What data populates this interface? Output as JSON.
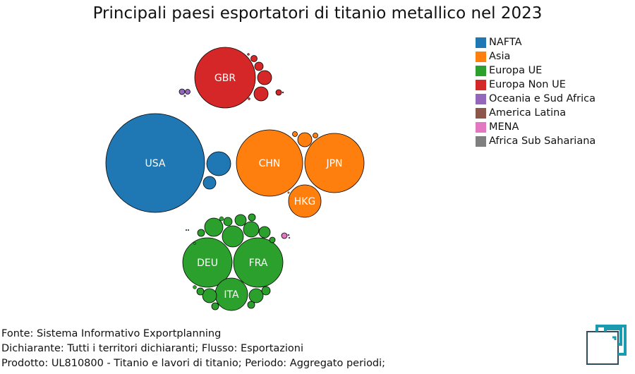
{
  "title": "Principali paesi esportatori di titanio metallico nel 2023",
  "legend": [
    {
      "label": "NAFTA",
      "color": "#1f77b4"
    },
    {
      "label": "Asia",
      "color": "#ff7f0e"
    },
    {
      "label": "Europa UE",
      "color": "#2ca02c"
    },
    {
      "label": "Europa Non UE",
      "color": "#d62728"
    },
    {
      "label": "Oceania e Sud Africa",
      "color": "#9467bd"
    },
    {
      "label": "America Latina",
      "color": "#8c564b"
    },
    {
      "label": "MENA",
      "color": "#e377c2"
    },
    {
      "label": "Africa Sub Sahariana",
      "color": "#7f7f7f"
    }
  ],
  "footer": {
    "line1": "Fonte: Sistema Informativo Exportplanning",
    "line2": "Dichiarante: Tutti i territori dichiaranti; Flusso: Esportazioni",
    "line3": "Prodotto: UL810800 - Titanio e lavori di titanio; Periodo: Aggregato periodi;"
  },
  "chart_data": {
    "type": "bubble",
    "title": "Principali paesi esportatori di titanio metallico nel 2023",
    "legend_position": "top-right",
    "labeled_bubbles": [
      {
        "label": "USA",
        "group": "NAFTA"
      },
      {
        "label": "GBR",
        "group": "Europa Non UE"
      },
      {
        "label": "CHN",
        "group": "Asia"
      },
      {
        "label": "JPN",
        "group": "Asia"
      },
      {
        "label": "HKG",
        "group": "Asia"
      },
      {
        "label": "DEU",
        "group": "Europa UE"
      },
      {
        "label": "FRA",
        "group": "Europa UE"
      },
      {
        "label": "ITA",
        "group": "Europa UE"
      }
    ]
  }
}
